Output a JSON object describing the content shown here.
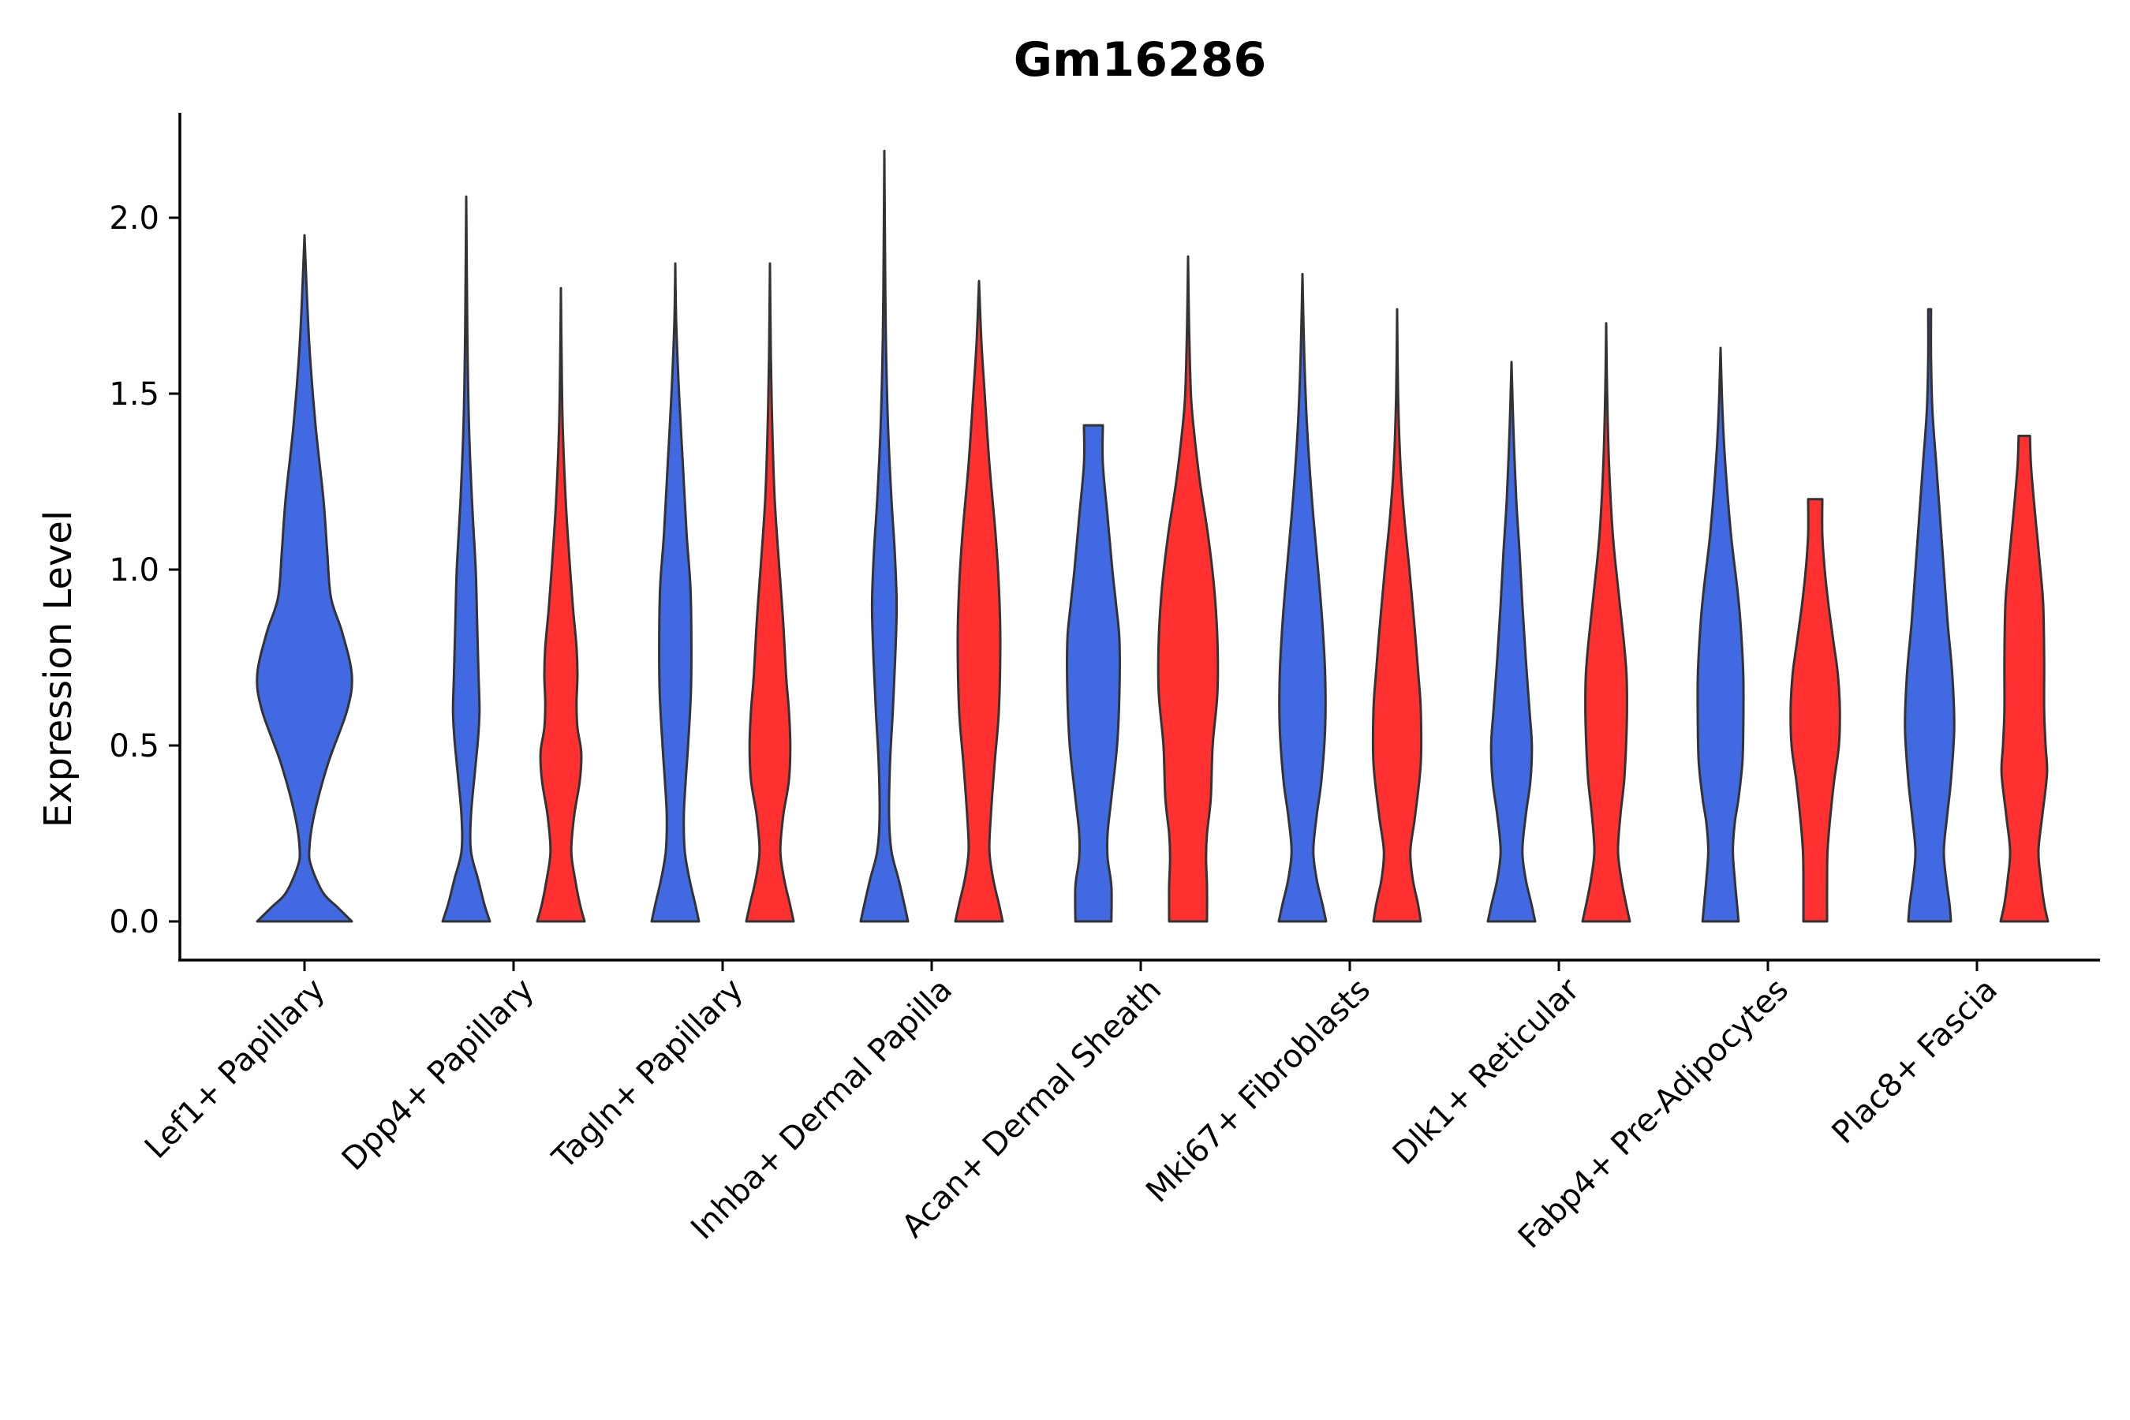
{
  "chart_data": {
    "type": "violin",
    "title": "Gm16286",
    "xlabel": "",
    "ylabel": "Expression Level",
    "ylim": [
      -0.11,
      2.3
    ],
    "yticks": [
      0.0,
      0.5,
      1.0,
      1.5,
      2.0
    ],
    "ytick_labels": [
      "0.0",
      "0.5",
      "1.0",
      "1.5",
      "2.0"
    ],
    "categories": [
      "Lef1+ Papillary",
      "Dpp4+ Papillary",
      "Tagln+ Papillary",
      "Inhba+ Dermal Papilla",
      "Acan+ Dermal Sheath",
      "Mki67+ Fibroblasts",
      "Dlk1+ Reticular",
      "Fabp4+ Pre-Adipocytes",
      "Plac8+ Fascia"
    ],
    "split_colors": {
      "left": "#4169E1",
      "right": "#FF3030"
    },
    "violins": [
      {
        "category": "Lef1+ Papillary",
        "color": "#4169E1",
        "max": 1.95,
        "profile": [
          [
            0,
            0.5
          ],
          [
            0.04,
            0.35
          ],
          [
            0.08,
            0.2
          ],
          [
            0.15,
            0.08
          ],
          [
            0.2,
            0.05
          ],
          [
            0.3,
            0.1
          ],
          [
            0.45,
            0.25
          ],
          [
            0.6,
            0.45
          ],
          [
            0.7,
            0.5
          ],
          [
            0.82,
            0.4
          ],
          [
            0.92,
            0.28
          ],
          [
            1.05,
            0.24
          ],
          [
            1.2,
            0.2
          ],
          [
            1.4,
            0.12
          ],
          [
            1.6,
            0.06
          ],
          [
            1.75,
            0.03
          ],
          [
            1.95,
            0
          ]
        ]
      },
      {
        "category": "Dpp4+ Papillary",
        "color": "#4169E1",
        "max": 2.06,
        "profile": [
          [
            0,
            0.5
          ],
          [
            0.05,
            0.38
          ],
          [
            0.12,
            0.25
          ],
          [
            0.2,
            0.1
          ],
          [
            0.3,
            0.1
          ],
          [
            0.42,
            0.18
          ],
          [
            0.52,
            0.25
          ],
          [
            0.6,
            0.28
          ],
          [
            0.7,
            0.26
          ],
          [
            0.85,
            0.23
          ],
          [
            1.0,
            0.2
          ],
          [
            1.2,
            0.12
          ],
          [
            1.4,
            0.06
          ],
          [
            1.6,
            0.03
          ],
          [
            1.8,
            0.015
          ],
          [
            2.06,
            0
          ]
        ]
      },
      {
        "category": "Dpp4+ Papillary",
        "color": "#FF3030",
        "max": 1.8,
        "profile": [
          [
            0,
            0.5
          ],
          [
            0.05,
            0.4
          ],
          [
            0.12,
            0.3
          ],
          [
            0.2,
            0.22
          ],
          [
            0.3,
            0.28
          ],
          [
            0.4,
            0.4
          ],
          [
            0.48,
            0.43
          ],
          [
            0.55,
            0.35
          ],
          [
            0.62,
            0.33
          ],
          [
            0.7,
            0.35
          ],
          [
            0.78,
            0.33
          ],
          [
            0.9,
            0.25
          ],
          [
            1.05,
            0.17
          ],
          [
            1.2,
            0.1
          ],
          [
            1.4,
            0.04
          ],
          [
            1.6,
            0.015
          ],
          [
            1.8,
            0
          ]
        ]
      },
      {
        "category": "Tagln+ Papillary",
        "color": "#4169E1",
        "max": 1.87,
        "profile": [
          [
            0,
            0.5
          ],
          [
            0.05,
            0.42
          ],
          [
            0.12,
            0.3
          ],
          [
            0.2,
            0.2
          ],
          [
            0.3,
            0.18
          ],
          [
            0.4,
            0.22
          ],
          [
            0.5,
            0.27
          ],
          [
            0.65,
            0.33
          ],
          [
            0.8,
            0.34
          ],
          [
            0.95,
            0.32
          ],
          [
            1.1,
            0.24
          ],
          [
            1.3,
            0.16
          ],
          [
            1.5,
            0.08
          ],
          [
            1.7,
            0.02
          ],
          [
            1.87,
            0
          ]
        ]
      },
      {
        "category": "Tagln+ Papillary",
        "color": "#FF3030",
        "max": 1.87,
        "profile": [
          [
            0,
            0.5
          ],
          [
            0.05,
            0.42
          ],
          [
            0.12,
            0.3
          ],
          [
            0.2,
            0.22
          ],
          [
            0.3,
            0.28
          ],
          [
            0.4,
            0.4
          ],
          [
            0.5,
            0.43
          ],
          [
            0.6,
            0.4
          ],
          [
            0.7,
            0.34
          ],
          [
            0.85,
            0.28
          ],
          [
            1.0,
            0.2
          ],
          [
            1.2,
            0.1
          ],
          [
            1.4,
            0.05
          ],
          [
            1.6,
            0.02
          ],
          [
            1.87,
            0
          ]
        ]
      },
      {
        "category": "Inhba+ Dermal Papilla",
        "color": "#4169E1",
        "max": 2.19,
        "profile": [
          [
            0,
            0.5
          ],
          [
            0.05,
            0.42
          ],
          [
            0.12,
            0.3
          ],
          [
            0.2,
            0.15
          ],
          [
            0.3,
            0.1
          ],
          [
            0.45,
            0.12
          ],
          [
            0.6,
            0.18
          ],
          [
            0.75,
            0.23
          ],
          [
            0.9,
            0.26
          ],
          [
            1.05,
            0.22
          ],
          [
            1.2,
            0.15
          ],
          [
            1.4,
            0.08
          ],
          [
            1.6,
            0.04
          ],
          [
            1.8,
            0.02
          ],
          [
            2.19,
            0
          ]
        ]
      },
      {
        "category": "Inhba+ Dermal Papilla",
        "color": "#FF3030",
        "max": 1.82,
        "profile": [
          [
            0,
            0.5
          ],
          [
            0.05,
            0.42
          ],
          [
            0.12,
            0.3
          ],
          [
            0.2,
            0.22
          ],
          [
            0.3,
            0.25
          ],
          [
            0.45,
            0.33
          ],
          [
            0.6,
            0.42
          ],
          [
            0.8,
            0.45
          ],
          [
            0.95,
            0.42
          ],
          [
            1.1,
            0.35
          ],
          [
            1.3,
            0.22
          ],
          [
            1.5,
            0.12
          ],
          [
            1.65,
            0.05
          ],
          [
            1.82,
            0
          ]
        ]
      },
      {
        "category": "Acan+ Dermal Sheath",
        "color": "#4169E1",
        "max": 1.41,
        "flat_top": true,
        "profile": [
          [
            0,
            0.38
          ],
          [
            0.1,
            0.38
          ],
          [
            0.18,
            0.3
          ],
          [
            0.25,
            0.3
          ],
          [
            0.35,
            0.38
          ],
          [
            0.5,
            0.5
          ],
          [
            0.65,
            0.55
          ],
          [
            0.8,
            0.55
          ],
          [
            0.9,
            0.48
          ],
          [
            1.0,
            0.4
          ],
          [
            1.15,
            0.3
          ],
          [
            1.3,
            0.2
          ],
          [
            1.41,
            0.2
          ]
        ]
      },
      {
        "category": "Acan+ Dermal Sheath",
        "color": "#FF3030",
        "max": 1.89,
        "profile": [
          [
            0,
            0.4
          ],
          [
            0.1,
            0.4
          ],
          [
            0.18,
            0.38
          ],
          [
            0.25,
            0.4
          ],
          [
            0.35,
            0.48
          ],
          [
            0.5,
            0.52
          ],
          [
            0.65,
            0.62
          ],
          [
            0.8,
            0.62
          ],
          [
            0.95,
            0.55
          ],
          [
            1.1,
            0.42
          ],
          [
            1.25,
            0.25
          ],
          [
            1.4,
            0.12
          ],
          [
            1.5,
            0.06
          ],
          [
            1.7,
            0.02
          ],
          [
            1.89,
            0
          ]
        ]
      },
      {
        "category": "Mki67+ Fibroblasts",
        "color": "#4169E1",
        "max": 1.84,
        "profile": [
          [
            0,
            0.5
          ],
          [
            0.05,
            0.42
          ],
          [
            0.12,
            0.3
          ],
          [
            0.2,
            0.23
          ],
          [
            0.3,
            0.3
          ],
          [
            0.4,
            0.4
          ],
          [
            0.55,
            0.48
          ],
          [
            0.7,
            0.48
          ],
          [
            0.85,
            0.42
          ],
          [
            1.0,
            0.33
          ],
          [
            1.2,
            0.2
          ],
          [
            1.4,
            0.1
          ],
          [
            1.6,
            0.04
          ],
          [
            1.84,
            0
          ]
        ]
      },
      {
        "category": "Mki67+ Fibroblasts",
        "color": "#FF3030",
        "max": 1.74,
        "profile": [
          [
            0,
            0.5
          ],
          [
            0.05,
            0.44
          ],
          [
            0.12,
            0.33
          ],
          [
            0.2,
            0.28
          ],
          [
            0.3,
            0.38
          ],
          [
            0.45,
            0.5
          ],
          [
            0.6,
            0.5
          ],
          [
            0.7,
            0.45
          ],
          [
            0.85,
            0.36
          ],
          [
            1.0,
            0.26
          ],
          [
            1.15,
            0.15
          ],
          [
            1.3,
            0.07
          ],
          [
            1.5,
            0.02
          ],
          [
            1.74,
            0
          ]
        ]
      },
      {
        "category": "Dlk1+ Reticular",
        "color": "#4169E1",
        "max": 1.59,
        "profile": [
          [
            0,
            0.5
          ],
          [
            0.05,
            0.42
          ],
          [
            0.12,
            0.3
          ],
          [
            0.2,
            0.23
          ],
          [
            0.3,
            0.3
          ],
          [
            0.4,
            0.4
          ],
          [
            0.5,
            0.43
          ],
          [
            0.6,
            0.38
          ],
          [
            0.75,
            0.3
          ],
          [
            0.9,
            0.23
          ],
          [
            1.05,
            0.17
          ],
          [
            1.2,
            0.1
          ],
          [
            1.4,
            0.04
          ],
          [
            1.59,
            0
          ]
        ]
      },
      {
        "category": "Dlk1+ Reticular",
        "color": "#FF3030",
        "max": 1.7,
        "profile": [
          [
            0,
            0.5
          ],
          [
            0.05,
            0.42
          ],
          [
            0.12,
            0.32
          ],
          [
            0.2,
            0.25
          ],
          [
            0.3,
            0.3
          ],
          [
            0.4,
            0.38
          ],
          [
            0.5,
            0.42
          ],
          [
            0.6,
            0.44
          ],
          [
            0.7,
            0.43
          ],
          [
            0.8,
            0.37
          ],
          [
            0.95,
            0.25
          ],
          [
            1.1,
            0.14
          ],
          [
            1.3,
            0.06
          ],
          [
            1.5,
            0.02
          ],
          [
            1.7,
            0
          ]
        ]
      },
      {
        "category": "Fabp4+ Pre-Adipocytes",
        "color": "#4169E1",
        "max": 1.63,
        "profile": [
          [
            0,
            0.38
          ],
          [
            0.06,
            0.34
          ],
          [
            0.12,
            0.3
          ],
          [
            0.2,
            0.26
          ],
          [
            0.28,
            0.3
          ],
          [
            0.35,
            0.38
          ],
          [
            0.45,
            0.46
          ],
          [
            0.55,
            0.48
          ],
          [
            0.7,
            0.48
          ],
          [
            0.85,
            0.42
          ],
          [
            0.95,
            0.35
          ],
          [
            1.1,
            0.22
          ],
          [
            1.3,
            0.1
          ],
          [
            1.45,
            0.04
          ],
          [
            1.63,
            0
          ]
        ]
      },
      {
        "category": "Fabp4+ Pre-Adipocytes",
        "color": "#FF3030",
        "max": 1.2,
        "flat_top": true,
        "profile": [
          [
            0,
            0.25
          ],
          [
            0.1,
            0.25
          ],
          [
            0.2,
            0.26
          ],
          [
            0.3,
            0.32
          ],
          [
            0.4,
            0.4
          ],
          [
            0.5,
            0.5
          ],
          [
            0.6,
            0.52
          ],
          [
            0.7,
            0.48
          ],
          [
            0.8,
            0.38
          ],
          [
            0.9,
            0.28
          ],
          [
            1.0,
            0.2
          ],
          [
            1.1,
            0.15
          ],
          [
            1.2,
            0.15
          ]
        ]
      },
      {
        "category": "Plac8+ Fascia",
        "color": "#4169E1",
        "max": 1.74,
        "profile": [
          [
            0,
            0.45
          ],
          [
            0.05,
            0.42
          ],
          [
            0.12,
            0.35
          ],
          [
            0.2,
            0.3
          ],
          [
            0.3,
            0.37
          ],
          [
            0.4,
            0.45
          ],
          [
            0.55,
            0.52
          ],
          [
            0.7,
            0.48
          ],
          [
            0.85,
            0.38
          ],
          [
            1.0,
            0.3
          ],
          [
            1.15,
            0.22
          ],
          [
            1.3,
            0.14
          ],
          [
            1.45,
            0.06
          ],
          [
            1.6,
            0.03
          ],
          [
            1.74,
            0.03
          ]
        ]
      },
      {
        "category": "Plac8+ Fascia",
        "color": "#FF3030",
        "max": 1.38,
        "flat_top": true,
        "profile": [
          [
            0,
            0.5
          ],
          [
            0.05,
            0.42
          ],
          [
            0.12,
            0.35
          ],
          [
            0.2,
            0.3
          ],
          [
            0.3,
            0.38
          ],
          [
            0.42,
            0.48
          ],
          [
            0.5,
            0.45
          ],
          [
            0.6,
            0.42
          ],
          [
            0.75,
            0.42
          ],
          [
            0.9,
            0.4
          ],
          [
            1.0,
            0.34
          ],
          [
            1.1,
            0.27
          ],
          [
            1.2,
            0.2
          ],
          [
            1.3,
            0.14
          ],
          [
            1.38,
            0.12
          ]
        ]
      }
    ]
  }
}
